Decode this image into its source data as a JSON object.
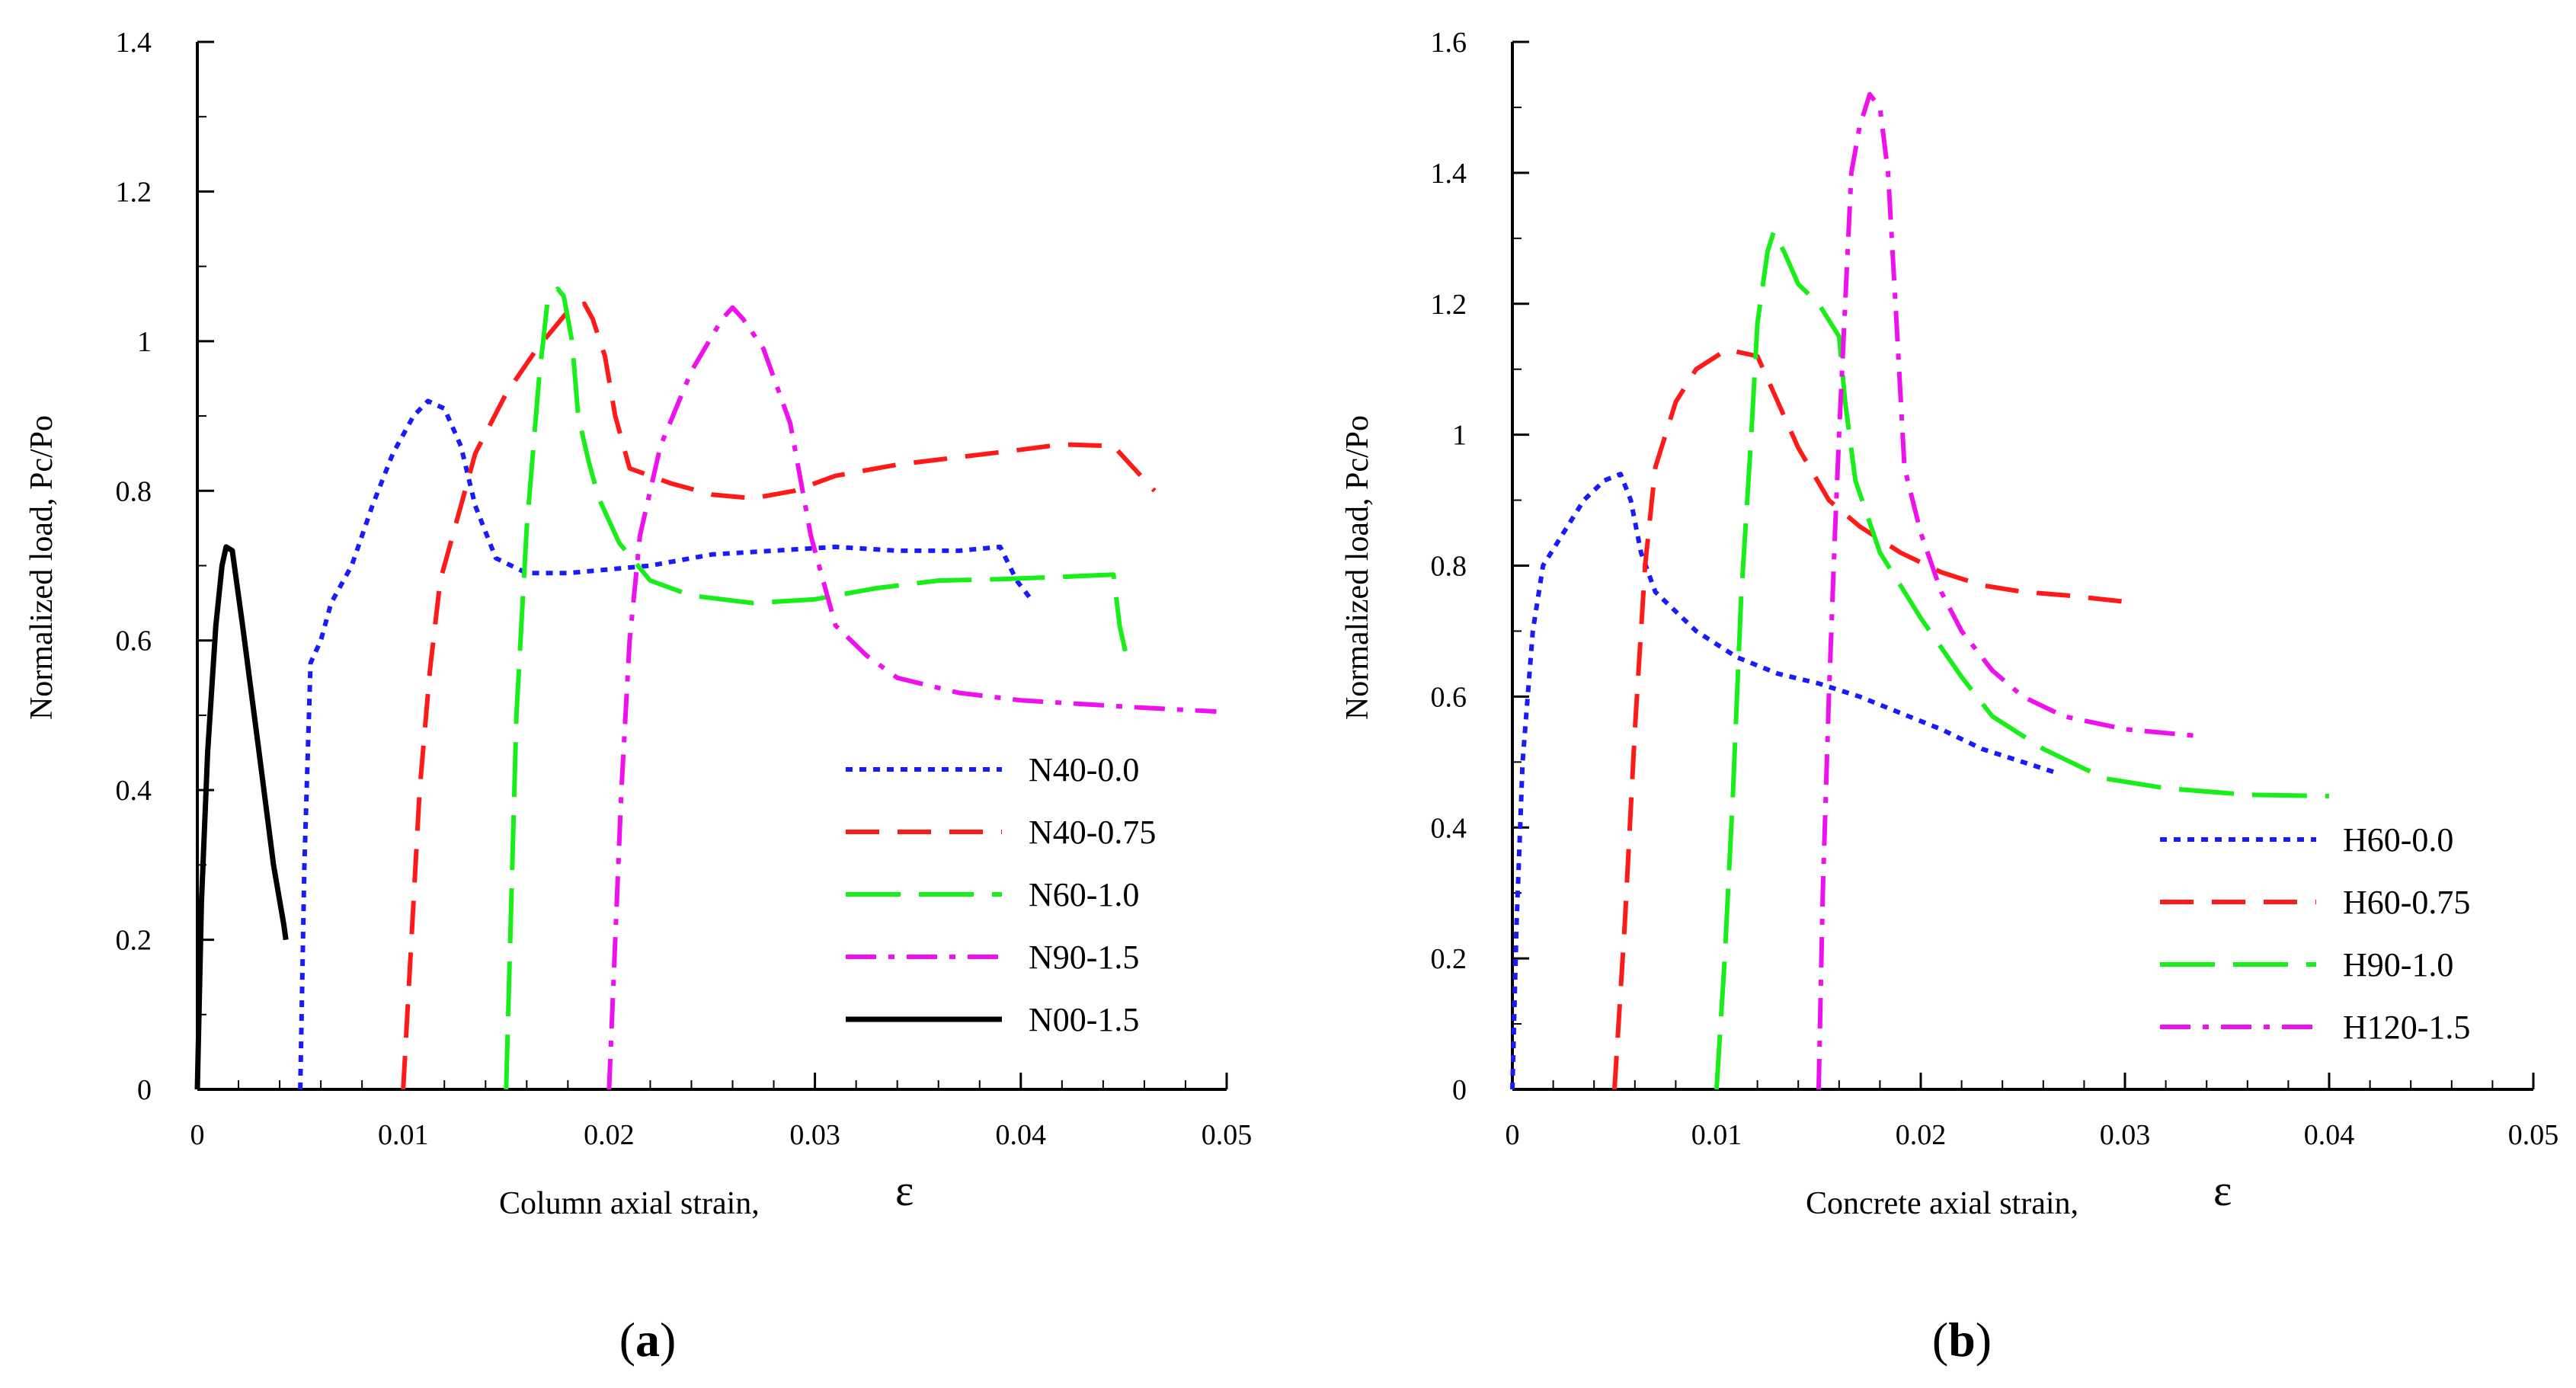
{
  "chart_data": [
    {
      "type": "line",
      "panel_label": {
        "open": "(",
        "letter": "a",
        "close": ")"
      },
      "xlabel": "Column axial strain,",
      "xlabel_symbol": "ε",
      "ylabel": "Normalized load, Pc/Po",
      "xlim": [
        0,
        0.05
      ],
      "ylim": [
        0,
        1.4
      ],
      "xticks": [
        "0",
        "0.01",
        "0.02",
        "0.03",
        "0.04",
        "0.05"
      ],
      "yticks": [
        "0",
        "0.2",
        "0.4",
        "0.6",
        "0.8",
        "1",
        "1.2",
        "1.4"
      ],
      "legend_position": "lower-right",
      "series": [
        {
          "name": "N40-0.0",
          "color": "#1a1aff",
          "style": "dot",
          "points": [
            [
              0.005,
              0
            ],
            [
              0.0052,
              0.3
            ],
            [
              0.0055,
              0.57
            ],
            [
              0.006,
              0.6
            ],
            [
              0.0065,
              0.65
            ],
            [
              0.0075,
              0.7
            ],
            [
              0.0085,
              0.78
            ],
            [
              0.0095,
              0.85
            ],
            [
              0.0105,
              0.9
            ],
            [
              0.0112,
              0.92
            ],
            [
              0.012,
              0.91
            ],
            [
              0.0128,
              0.86
            ],
            [
              0.0135,
              0.78
            ],
            [
              0.0145,
              0.71
            ],
            [
              0.016,
              0.69
            ],
            [
              0.018,
              0.69
            ],
            [
              0.02,
              0.695
            ],
            [
              0.022,
              0.7
            ],
            [
              0.025,
              0.715
            ],
            [
              0.028,
              0.72
            ],
            [
              0.031,
              0.725
            ],
            [
              0.034,
              0.72
            ],
            [
              0.037,
              0.72
            ],
            [
              0.039,
              0.725
            ],
            [
              0.0398,
              0.68
            ],
            [
              0.0405,
              0.655
            ]
          ]
        },
        {
          "name": "N40-0.75",
          "color": "#ff1a1a",
          "style": "dash",
          "points": [
            [
              0.01,
              0
            ],
            [
              0.0104,
              0.2
            ],
            [
              0.0108,
              0.4
            ],
            [
              0.0113,
              0.56
            ],
            [
              0.0118,
              0.68
            ],
            [
              0.0125,
              0.75
            ],
            [
              0.0135,
              0.85
            ],
            [
              0.015,
              0.93
            ],
            [
              0.0165,
              0.99
            ],
            [
              0.018,
              1.04
            ],
            [
              0.0188,
              1.05
            ],
            [
              0.0192,
              1.03
            ],
            [
              0.0198,
              0.98
            ],
            [
              0.0203,
              0.9
            ],
            [
              0.021,
              0.83
            ],
            [
              0.023,
              0.81
            ],
            [
              0.025,
              0.795
            ],
            [
              0.027,
              0.79
            ],
            [
              0.029,
              0.8
            ],
            [
              0.031,
              0.82
            ],
            [
              0.034,
              0.835
            ],
            [
              0.037,
              0.845
            ],
            [
              0.04,
              0.855
            ],
            [
              0.042,
              0.862
            ],
            [
              0.0445,
              0.86
            ],
            [
              0.0465,
              0.8
            ]
          ]
        },
        {
          "name": "N60-1.0",
          "color": "#1aee1a",
          "style": "longdash",
          "points": [
            [
              0.015,
              0
            ],
            [
              0.0152,
              0.2
            ],
            [
              0.0155,
              0.5
            ],
            [
              0.016,
              0.75
            ],
            [
              0.0166,
              0.95
            ],
            [
              0.017,
              1.05
            ],
            [
              0.0175,
              1.07
            ],
            [
              0.0178,
              1.06
            ],
            [
              0.0182,
              1.0
            ],
            [
              0.0185,
              0.9
            ],
            [
              0.019,
              0.84
            ],
            [
              0.0195,
              0.79
            ],
            [
              0.0205,
              0.73
            ],
            [
              0.022,
              0.68
            ],
            [
              0.024,
              0.66
            ],
            [
              0.027,
              0.65
            ],
            [
              0.03,
              0.655
            ],
            [
              0.033,
              0.67
            ],
            [
              0.036,
              0.68
            ],
            [
              0.039,
              0.682
            ],
            [
              0.042,
              0.685
            ],
            [
              0.0445,
              0.688
            ],
            [
              0.0448,
              0.62
            ],
            [
              0.0452,
              0.57
            ]
          ]
        },
        {
          "name": "N90-1.5",
          "color": "#ee11ee",
          "style": "dashdot",
          "points": [
            [
              0.02,
              0
            ],
            [
              0.0203,
              0.2
            ],
            [
              0.0206,
              0.4
            ],
            [
              0.021,
              0.6
            ],
            [
              0.0215,
              0.74
            ],
            [
              0.0225,
              0.86
            ],
            [
              0.024,
              0.96
            ],
            [
              0.0255,
              1.03
            ],
            [
              0.026,
              1.045
            ],
            [
              0.0265,
              1.03
            ],
            [
              0.0275,
              0.99
            ],
            [
              0.0288,
              0.89
            ],
            [
              0.0298,
              0.74
            ],
            [
              0.031,
              0.62
            ],
            [
              0.0325,
              0.58
            ],
            [
              0.034,
              0.55
            ],
            [
              0.037,
              0.53
            ],
            [
              0.04,
              0.52
            ],
            [
              0.043,
              0.515
            ],
            [
              0.046,
              0.51
            ],
            [
              0.0495,
              0.505
            ]
          ]
        },
        {
          "name": "N00-1.5",
          "color": "#000000",
          "style": "solid",
          "points": [
            [
              0,
              0
            ],
            [
              0.0002,
              0.25
            ],
            [
              0.0005,
              0.45
            ],
            [
              0.0009,
              0.62
            ],
            [
              0.0012,
              0.7
            ],
            [
              0.0014,
              0.725
            ],
            [
              0.0017,
              0.72
            ],
            [
              0.0022,
              0.62
            ],
            [
              0.003,
              0.45
            ],
            [
              0.0037,
              0.3
            ],
            [
              0.0042,
              0.22
            ],
            [
              0.0043,
              0.2
            ]
          ]
        }
      ]
    },
    {
      "type": "line",
      "panel_label": {
        "open": "(",
        "letter": "b",
        "close": ")"
      },
      "xlabel": "Concrete axial strain,",
      "xlabel_symbol": "ε",
      "ylabel": "Normalized load, Pc/Po",
      "xlim": [
        0,
        0.05
      ],
      "ylim": [
        0,
        1.6
      ],
      "xticks": [
        "0",
        "0.01",
        "0.02",
        "0.03",
        "0.04",
        "0.05"
      ],
      "yticks": [
        "0",
        "0.2",
        "0.4",
        "0.6",
        "0.8",
        "1",
        "1.2",
        "1.4",
        "1.6"
      ],
      "legend_position": "lower-right",
      "series": [
        {
          "name": "H60-0.0",
          "color": "#1a1aff",
          "style": "dot",
          "points": [
            [
              0,
              0
            ],
            [
              0.0002,
              0.25
            ],
            [
              0.0005,
              0.5
            ],
            [
              0.001,
              0.7
            ],
            [
              0.0015,
              0.8
            ],
            [
              0.0025,
              0.85
            ],
            [
              0.0035,
              0.9
            ],
            [
              0.0045,
              0.93
            ],
            [
              0.0053,
              0.94
            ],
            [
              0.0058,
              0.9
            ],
            [
              0.0063,
              0.82
            ],
            [
              0.007,
              0.76
            ],
            [
              0.009,
              0.7
            ],
            [
              0.011,
              0.66
            ],
            [
              0.013,
              0.635
            ],
            [
              0.015,
              0.62
            ],
            [
              0.017,
              0.6
            ],
            [
              0.019,
              0.575
            ],
            [
              0.021,
              0.55
            ],
            [
              0.023,
              0.52
            ],
            [
              0.025,
              0.5
            ],
            [
              0.0265,
              0.485
            ]
          ]
        },
        {
          "name": "H60-0.75",
          "color": "#ff1a1a",
          "style": "dash",
          "points": [
            [
              0.005,
              0
            ],
            [
              0.0055,
              0.25
            ],
            [
              0.006,
              0.55
            ],
            [
              0.0065,
              0.8
            ],
            [
              0.007,
              0.95
            ],
            [
              0.008,
              1.05
            ],
            [
              0.009,
              1.1
            ],
            [
              0.0105,
              1.13
            ],
            [
              0.012,
              1.12
            ],
            [
              0.013,
              1.05
            ],
            [
              0.014,
              0.98
            ],
            [
              0.0155,
              0.9
            ],
            [
              0.017,
              0.86
            ],
            [
              0.019,
              0.82
            ],
            [
              0.021,
              0.79
            ],
            [
              0.023,
              0.77
            ],
            [
              0.025,
              0.76
            ],
            [
              0.027,
              0.755
            ],
            [
              0.03,
              0.745
            ]
          ]
        },
        {
          "name": "H90-1.0",
          "color": "#1aee1a",
          "style": "longdash",
          "points": [
            [
              0.01,
              0
            ],
            [
              0.0104,
              0.2
            ],
            [
              0.0108,
              0.45
            ],
            [
              0.0112,
              0.75
            ],
            [
              0.0117,
              1.0
            ],
            [
              0.012,
              1.17
            ],
            [
              0.0125,
              1.28
            ],
            [
              0.0128,
              1.31
            ],
            [
              0.0133,
              1.28
            ],
            [
              0.014,
              1.23
            ],
            [
              0.015,
              1.2
            ],
            [
              0.016,
              1.15
            ],
            [
              0.0163,
              1.05
            ],
            [
              0.0168,
              0.93
            ],
            [
              0.018,
              0.82
            ],
            [
              0.02,
              0.72
            ],
            [
              0.022,
              0.63
            ],
            [
              0.0235,
              0.57
            ],
            [
              0.026,
              0.52
            ],
            [
              0.029,
              0.475
            ],
            [
              0.032,
              0.46
            ],
            [
              0.036,
              0.45
            ],
            [
              0.04,
              0.448
            ]
          ]
        },
        {
          "name": "H120-1.5",
          "color": "#ee11ee",
          "style": "dashdot",
          "points": [
            [
              0.015,
              0
            ],
            [
              0.0152,
              0.3
            ],
            [
              0.0155,
              0.6
            ],
            [
              0.0158,
              0.85
            ],
            [
              0.016,
              1.0
            ],
            [
              0.0163,
              1.2
            ],
            [
              0.0166,
              1.4
            ],
            [
              0.017,
              1.47
            ],
            [
              0.0175,
              1.52
            ],
            [
              0.018,
              1.5
            ],
            [
              0.0184,
              1.4
            ],
            [
              0.0188,
              1.18
            ],
            [
              0.0192,
              0.95
            ],
            [
              0.02,
              0.85
            ],
            [
              0.021,
              0.76
            ],
            [
              0.022,
              0.7
            ],
            [
              0.0235,
              0.64
            ],
            [
              0.025,
              0.6
            ],
            [
              0.027,
              0.57
            ],
            [
              0.03,
              0.55
            ],
            [
              0.0335,
              0.54
            ]
          ]
        }
      ]
    }
  ]
}
